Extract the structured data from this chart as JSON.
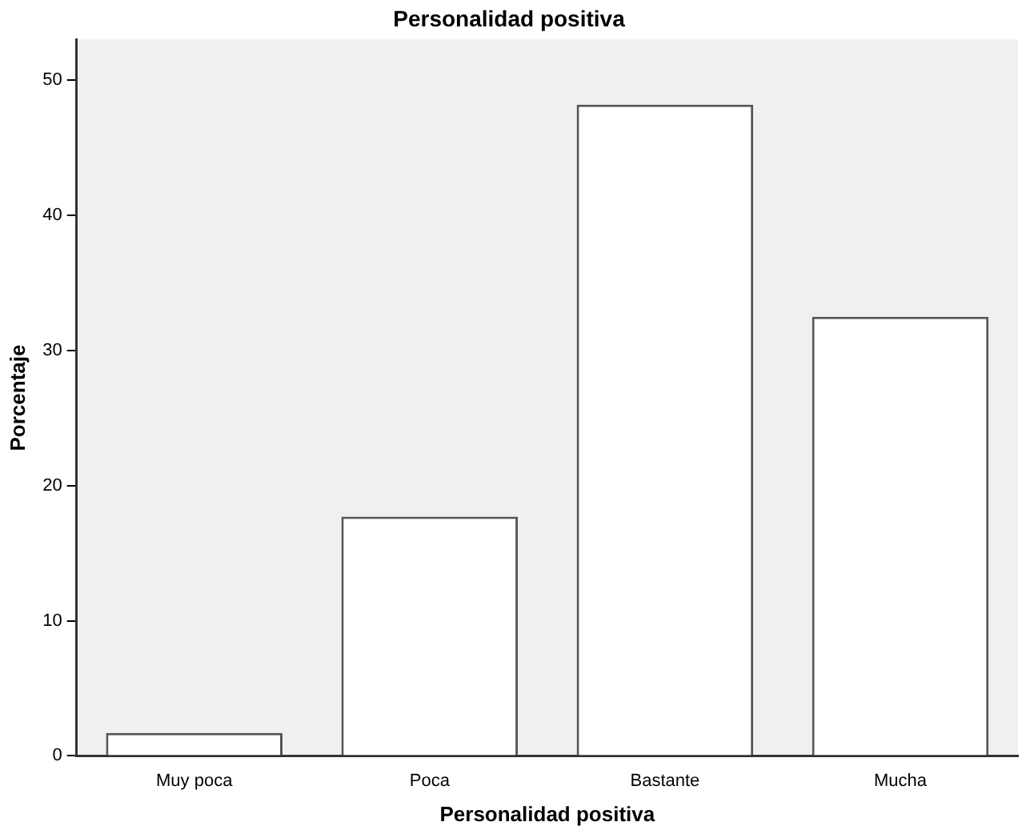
{
  "chart_data": {
    "type": "bar",
    "title": "Personalidad positiva",
    "xlabel": "Personalidad positiva",
    "ylabel": "Porcentaje",
    "categories": [
      "Muy poca",
      "Poca",
      "Bastante",
      "Mucha"
    ],
    "values": [
      1.7,
      17.7,
      48.2,
      32.5
    ],
    "color": "#ffffff",
    "ylim": [
      0,
      53
    ],
    "yticks": [
      0,
      10,
      20,
      30,
      40,
      50
    ],
    "grid": false,
    "legend": false
  }
}
